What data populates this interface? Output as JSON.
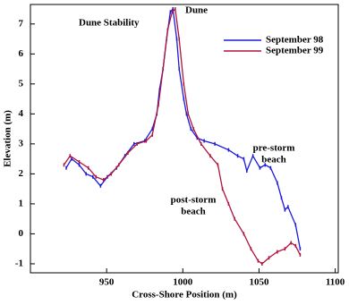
{
  "chart_data": {
    "type": "line",
    "title": "Dune Stability",
    "x_label": "Cross-Shore Position (m)",
    "y_label": "Elevation (m)",
    "annotations": [
      "Dune",
      "pre-storm",
      "beach",
      "post-storm",
      "beach"
    ],
    "xlim": [
      900,
      1102
    ],
    "xticks": [
      950,
      1000,
      1050,
      1100
    ],
    "ylim": [
      -1.3,
      7.65
    ],
    "yticks": [
      -1,
      0,
      1,
      2,
      3,
      4,
      5,
      6,
      7
    ],
    "legend": "upper right",
    "series": [
      {
        "name": "September 98",
        "color": "#1a1adc",
        "x": [
          923.5,
          927,
          932,
          936.5,
          941,
          946,
          950.5,
          956.5,
          962,
          968,
          975,
          980,
          983,
          984.7,
          987,
          989.4,
          991.8,
          993.5,
          996,
          997.6,
          1000.6,
          1002.4,
          1005.3,
          1009.4,
          1014,
          1021,
          1030,
          1036,
          1040,
          1042,
          1046,
          1050.6,
          1054,
          1057.6,
          1062,
          1064.7,
          1067,
          1069,
          1074,
          1077
        ],
        "values": [
          2.2,
          2.5,
          2.3,
          2.0,
          1.9,
          1.6,
          1.9,
          2.2,
          2.6,
          3.0,
          3.1,
          3.5,
          4.0,
          4.8,
          5.5,
          6.5,
          7.4,
          7.5,
          6.5,
          5.5,
          4.5,
          4.0,
          3.5,
          3.2,
          3.1,
          3.0,
          2.8,
          2.6,
          2.5,
          2.1,
          2.6,
          2.2,
          2.3,
          2.2,
          1.7,
          1.2,
          0.8,
          0.9,
          0.3,
          -0.5
        ]
      },
      {
        "name": "September 99",
        "color": "#b0143c",
        "x": [
          922,
          926,
          932,
          938,
          943,
          948,
          953,
          958,
          964,
          970,
          976,
          980,
          984,
          987,
          990,
          993,
          995,
          997.6,
          1000.6,
          1003.5,
          1007,
          1012,
          1018,
          1023,
          1026,
          1030,
          1034,
          1040,
          1044.7,
          1049.4,
          1052,
          1056.5,
          1062,
          1067,
          1071,
          1074,
          1077
        ],
        "values": [
          2.3,
          2.6,
          2.4,
          2.2,
          1.9,
          1.8,
          2.0,
          2.3,
          2.7,
          3.0,
          3.1,
          3.3,
          4.3,
          5.5,
          6.8,
          7.4,
          7.5,
          6.5,
          5.0,
          4.0,
          3.5,
          3.0,
          2.6,
          2.3,
          1.5,
          1.0,
          0.5,
          0.0,
          -0.5,
          -0.9,
          -1.0,
          -0.8,
          -0.6,
          -0.5,
          -0.3,
          -0.4,
          -0.7
        ]
      }
    ]
  }
}
